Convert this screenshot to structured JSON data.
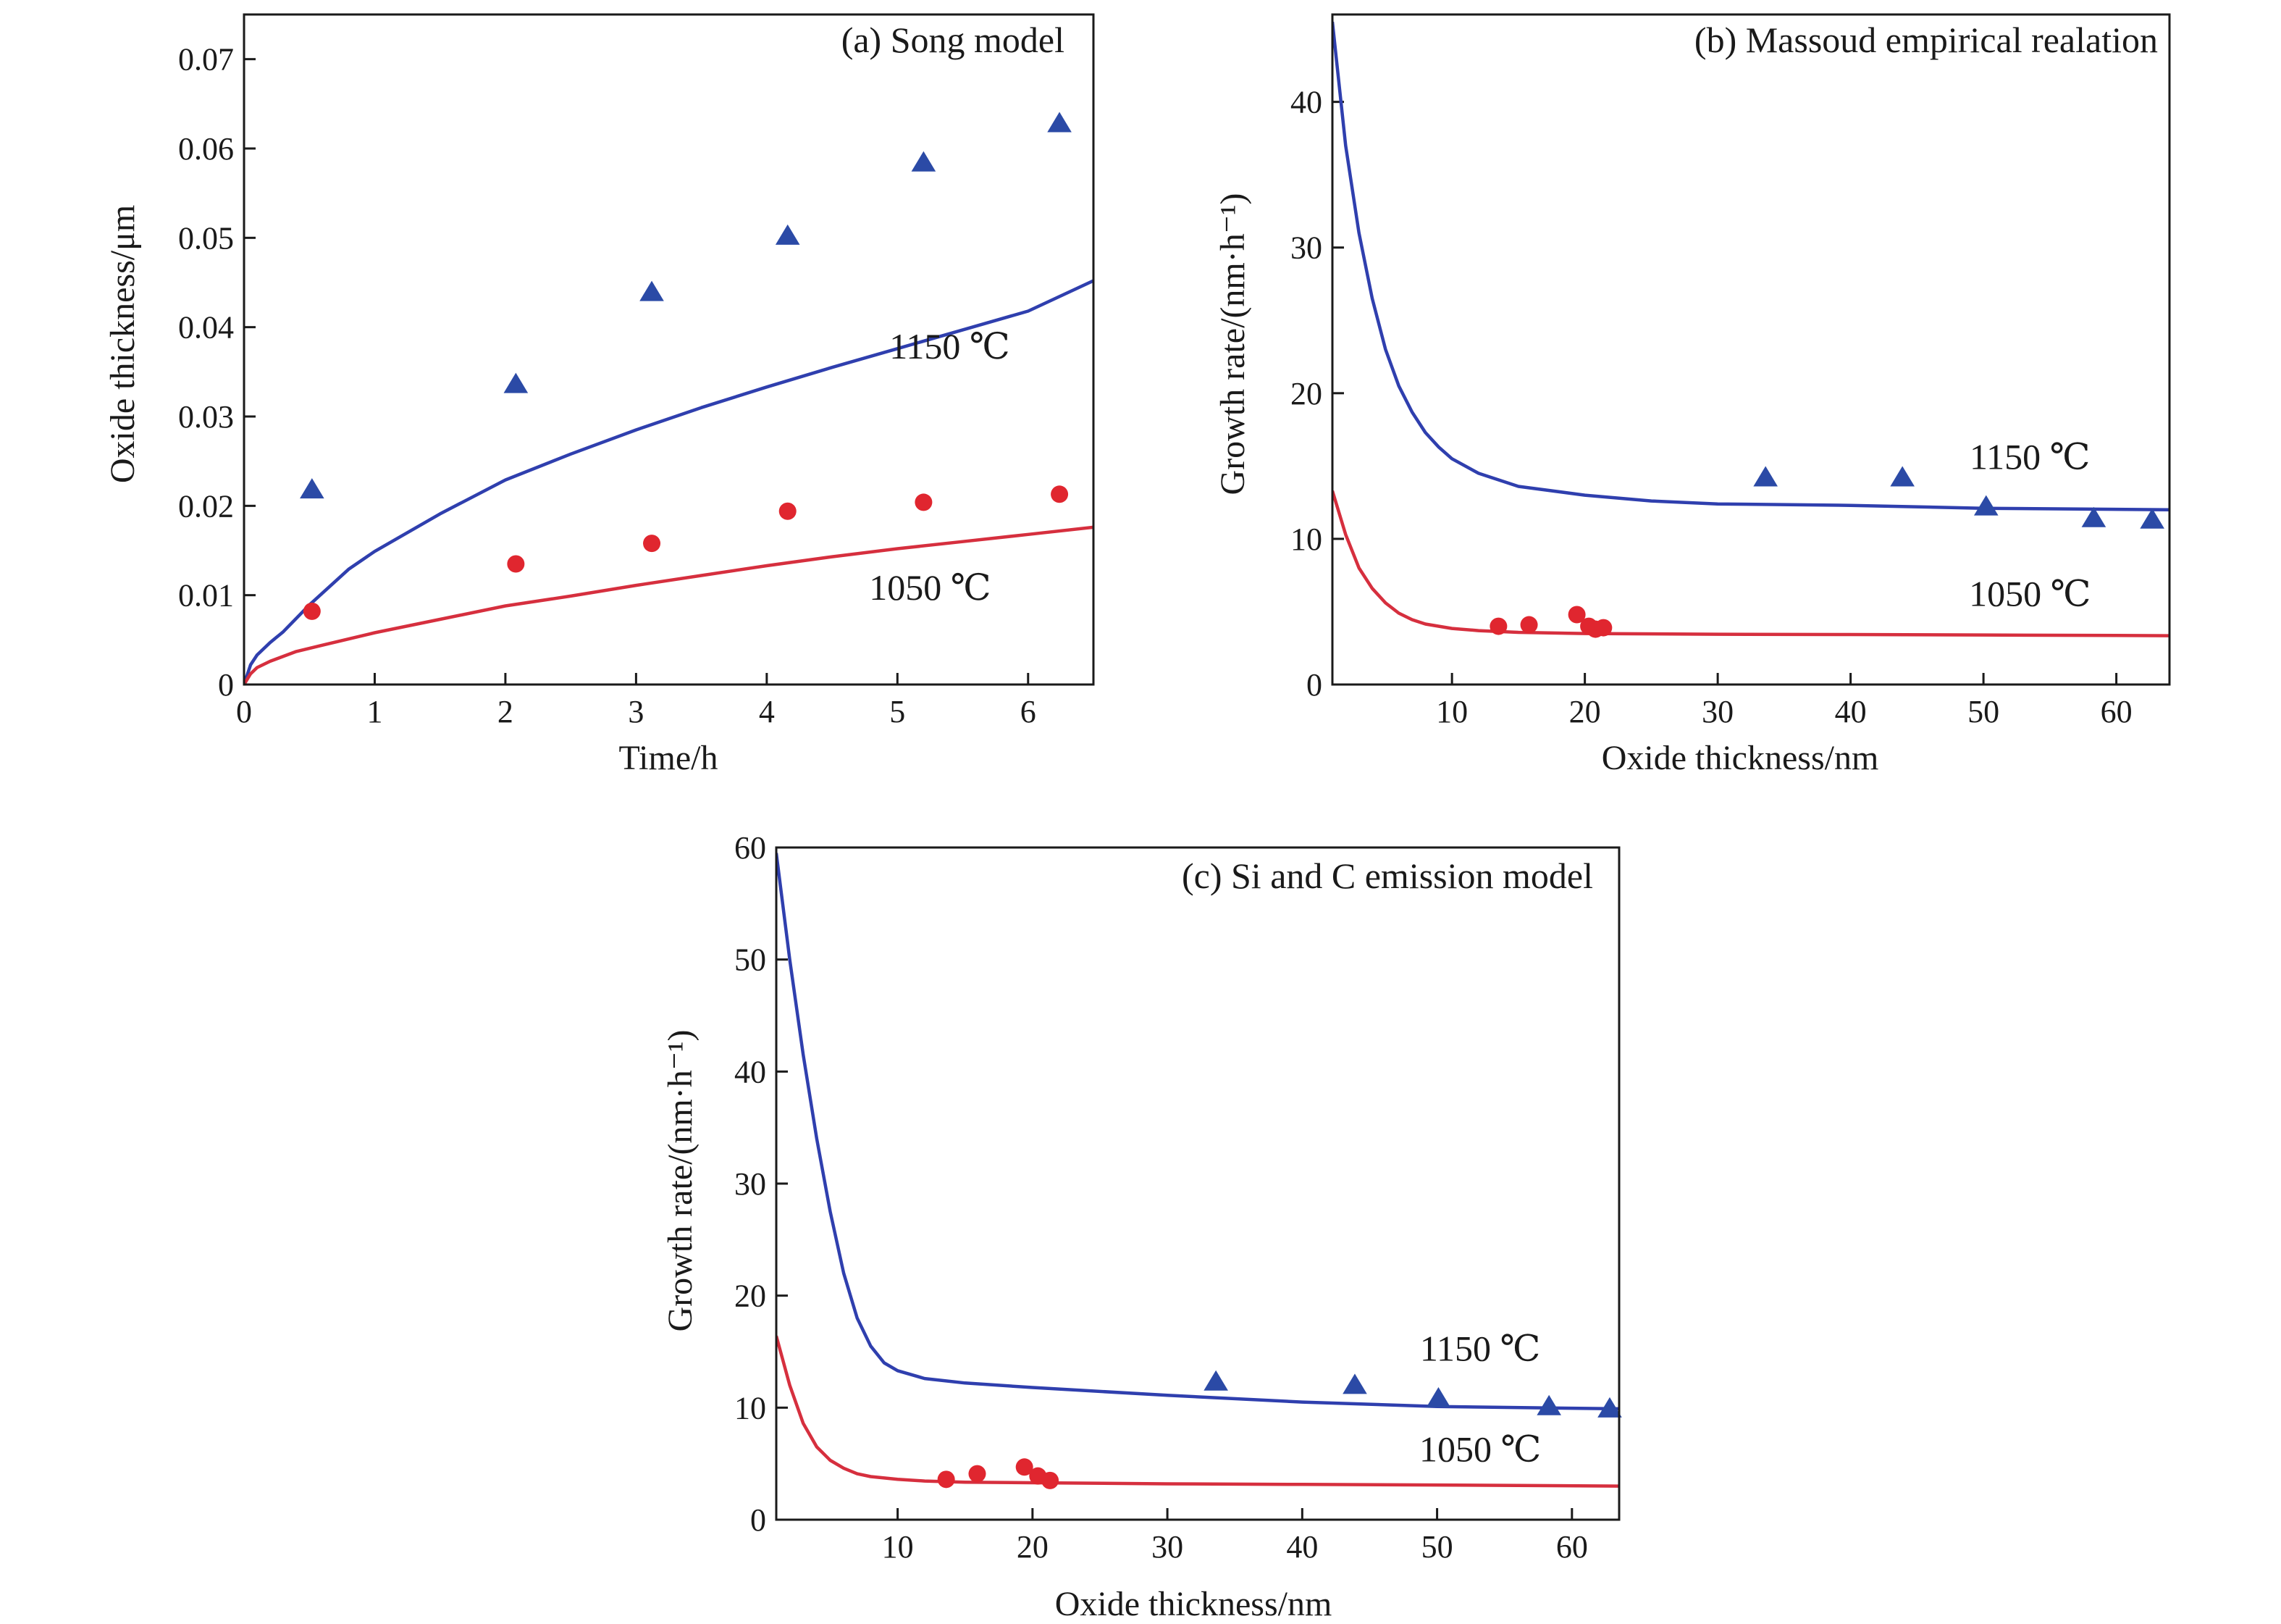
{
  "colors": {
    "hot": "#2b4aa6",
    "cool": "#e0262f",
    "curve_hot": "#2f3fae",
    "curve_cool": "#d62f3e",
    "axis": "#1a1a1a"
  },
  "chart_data": [
    {
      "id": "a",
      "type": "scatter+line",
      "title": "(a) Song model",
      "xlabel": "Time/h",
      "ylabel": "Oxide thickness/μm",
      "xlim": [
        0,
        6.5
      ],
      "ylim": [
        0,
        0.075
      ],
      "xticks": [
        0,
        1,
        2,
        3,
        4,
        5,
        6
      ],
      "xtick_labels": [
        "0",
        "1",
        "2",
        "3",
        "4",
        "5",
        "6"
      ],
      "yticks": [
        0,
        0.01,
        0.02,
        0.03,
        0.04,
        0.05,
        0.06,
        0.07
      ],
      "ytick_labels": [
        "0",
        "0.01",
        "0.02",
        "0.03",
        "0.04",
        "0.05",
        "0.06",
        "0.07"
      ],
      "series": [
        {
          "name": "1150 ℃",
          "label": "1150 ℃",
          "label_at": [
            5.4,
            0.0365
          ],
          "marker": "triangle",
          "color_key": "hot",
          "points": [
            [
              0.52,
              0.0218
            ],
            [
              2.08,
              0.0336
            ],
            [
              3.12,
              0.0439
            ],
            [
              4.16,
              0.0502
            ],
            [
              5.2,
              0.0584
            ],
            [
              6.24,
              0.0628
            ]
          ],
          "curve": [
            [
              0,
              0
            ],
            [
              0.05,
              0.0022
            ],
            [
              0.1,
              0.0033
            ],
            [
              0.2,
              0.0047
            ],
            [
              0.3,
              0.0059
            ],
            [
              0.5,
              0.0089
            ],
            [
              0.8,
              0.0129
            ],
            [
              1.0,
              0.0149
            ],
            [
              1.5,
              0.0191
            ],
            [
              2.0,
              0.0229
            ],
            [
              2.5,
              0.0258
            ],
            [
              3.0,
              0.0285
            ],
            [
              3.5,
              0.031
            ],
            [
              4.0,
              0.0333
            ],
            [
              4.5,
              0.0355
            ],
            [
              5.0,
              0.0376
            ],
            [
              5.5,
              0.0397
            ],
            [
              6.0,
              0.0418
            ],
            [
              6.5,
              0.0452
            ]
          ]
        },
        {
          "name": "1050 ℃",
          "label": "1050 ℃",
          "label_at": [
            5.25,
            0.0095
          ],
          "marker": "circle",
          "color_key": "cool",
          "points": [
            [
              0.52,
              0.0082
            ],
            [
              2.08,
              0.0135
            ],
            [
              3.12,
              0.0158
            ],
            [
              4.16,
              0.0194
            ],
            [
              5.2,
              0.0204
            ],
            [
              6.24,
              0.0213
            ]
          ],
          "curve": [
            [
              0,
              0
            ],
            [
              0.05,
              0.0012
            ],
            [
              0.1,
              0.0019
            ],
            [
              0.2,
              0.0026
            ],
            [
              0.4,
              0.0037
            ],
            [
              0.6,
              0.0044
            ],
            [
              1.0,
              0.0058
            ],
            [
              1.5,
              0.0073
            ],
            [
              2.0,
              0.0088
            ],
            [
              2.5,
              0.0099
            ],
            [
              3.0,
              0.0111
            ],
            [
              3.5,
              0.0122
            ],
            [
              4.0,
              0.0133
            ],
            [
              4.5,
              0.0143
            ],
            [
              5.0,
              0.0152
            ],
            [
              5.5,
              0.016
            ],
            [
              6.0,
              0.0168
            ],
            [
              6.5,
              0.0176
            ]
          ]
        }
      ]
    },
    {
      "id": "b",
      "type": "scatter+line",
      "title": "(b) Massoud empirical realation",
      "xlabel": "Oxide thickness/nm",
      "ylabel": "Growth rate/(nm·h⁻¹)",
      "xlim": [
        1,
        64
      ],
      "ylim": [
        0,
        46
      ],
      "xticks": [
        10,
        20,
        30,
        40,
        50,
        60
      ],
      "xtick_labels": [
        "10",
        "20",
        "30",
        "40",
        "50",
        "60"
      ],
      "yticks": [
        0,
        10,
        20,
        30,
        40
      ],
      "ytick_labels": [
        "0",
        "10",
        "20",
        "30",
        "40"
      ],
      "series": [
        {
          "name": "1150 ℃",
          "label": "1150 ℃",
          "label_at": [
            53.5,
            14.8
          ],
          "marker": "triangle",
          "color_key": "hot",
          "points": [
            [
              33.6,
              14.2
            ],
            [
              43.9,
              14.2
            ],
            [
              50.2,
              12.2
            ],
            [
              58.3,
              11.4
            ],
            [
              62.7,
              11.3
            ]
          ],
          "curve": [
            [
              1,
              45.5
            ],
            [
              2,
              37.0
            ],
            [
              3,
              31.0
            ],
            [
              4,
              26.5
            ],
            [
              5,
              23.0
            ],
            [
              6,
              20.5
            ],
            [
              7,
              18.7
            ],
            [
              8,
              17.3
            ],
            [
              9,
              16.3
            ],
            [
              10,
              15.5
            ],
            [
              12,
              14.5
            ],
            [
              15,
              13.6
            ],
            [
              20,
              13.0
            ],
            [
              25,
              12.6
            ],
            [
              30,
              12.4
            ],
            [
              40,
              12.3
            ],
            [
              50,
              12.1
            ],
            [
              64,
              12.0
            ]
          ]
        },
        {
          "name": "1050 ℃",
          "label": "1050 ℃",
          "label_at": [
            53.5,
            5.4
          ],
          "marker": "circle",
          "color_key": "cool",
          "points": [
            [
              13.5,
              4.0
            ],
            [
              15.8,
              4.1
            ],
            [
              19.4,
              4.8
            ],
            [
              20.3,
              4.0
            ],
            [
              20.8,
              3.8
            ],
            [
              21.4,
              3.9
            ]
          ],
          "curve": [
            [
              1,
              13.3
            ],
            [
              2,
              10.3
            ],
            [
              3,
              8.0
            ],
            [
              4,
              6.6
            ],
            [
              5,
              5.6
            ],
            [
              6,
              4.9
            ],
            [
              7,
              4.45
            ],
            [
              8,
              4.15
            ],
            [
              10,
              3.85
            ],
            [
              12,
              3.7
            ],
            [
              15,
              3.58
            ],
            [
              20,
              3.5
            ],
            [
              30,
              3.45
            ],
            [
              40,
              3.43
            ],
            [
              50,
              3.4
            ],
            [
              64,
              3.35
            ]
          ]
        }
      ]
    },
    {
      "id": "c",
      "type": "scatter+line",
      "title": "(c) Si and C emission model",
      "xlabel": "Oxide thickness/nm",
      "ylabel": "Growth rate/(nm·h⁻¹)",
      "xlim": [
        1,
        63.5
      ],
      "ylim": [
        0,
        60
      ],
      "xticks": [
        10,
        20,
        30,
        40,
        50,
        60
      ],
      "xtick_labels": [
        "10",
        "20",
        "30",
        "40",
        "50",
        "60"
      ],
      "yticks": [
        0,
        10,
        20,
        30,
        40,
        50,
        60
      ],
      "ytick_labels": [
        "0",
        "10",
        "20",
        "30",
        "40",
        "50",
        "60"
      ],
      "series": [
        {
          "name": "1150 ℃",
          "label": "1150 ℃",
          "label_at": [
            53.2,
            14.2
          ],
          "marker": "triangle",
          "color_key": "hot",
          "points": [
            [
              33.6,
              12.3
            ],
            [
              43.9,
              12.0
            ],
            [
              50.1,
              10.8
            ],
            [
              58.3,
              10.1
            ],
            [
              62.8,
              9.9
            ]
          ],
          "curve": [
            [
              1,
              59.5
            ],
            [
              2,
              50.0
            ],
            [
              3,
              41.5
            ],
            [
              4,
              34.0
            ],
            [
              5,
              27.5
            ],
            [
              6,
              22.0
            ],
            [
              7,
              18.0
            ],
            [
              8,
              15.5
            ],
            [
              9,
              14.0
            ],
            [
              10,
              13.3
            ],
            [
              12,
              12.6
            ],
            [
              15,
              12.2
            ],
            [
              20,
              11.8
            ],
            [
              30,
              11.1
            ],
            [
              40,
              10.5
            ],
            [
              50,
              10.1
            ],
            [
              63.5,
              9.9
            ]
          ]
        },
        {
          "name": "1050 ℃",
          "label": "1050 ℃",
          "label_at": [
            53.2,
            5.2
          ],
          "marker": "circle",
          "color_key": "cool",
          "points": [
            [
              13.6,
              3.6
            ],
            [
              15.9,
              4.1
            ],
            [
              19.4,
              4.7
            ],
            [
              20.4,
              3.9
            ],
            [
              21.3,
              3.5
            ]
          ],
          "curve": [
            [
              1,
              16.4
            ],
            [
              2,
              12.0
            ],
            [
              3,
              8.6
            ],
            [
              4,
              6.5
            ],
            [
              5,
              5.3
            ],
            [
              6,
              4.6
            ],
            [
              7,
              4.1
            ],
            [
              8,
              3.85
            ],
            [
              10,
              3.6
            ],
            [
              12,
              3.45
            ],
            [
              15,
              3.35
            ],
            [
              20,
              3.3
            ],
            [
              30,
              3.2
            ],
            [
              40,
              3.15
            ],
            [
              50,
              3.1
            ],
            [
              63.5,
              3.0
            ]
          ]
        }
      ]
    }
  ]
}
